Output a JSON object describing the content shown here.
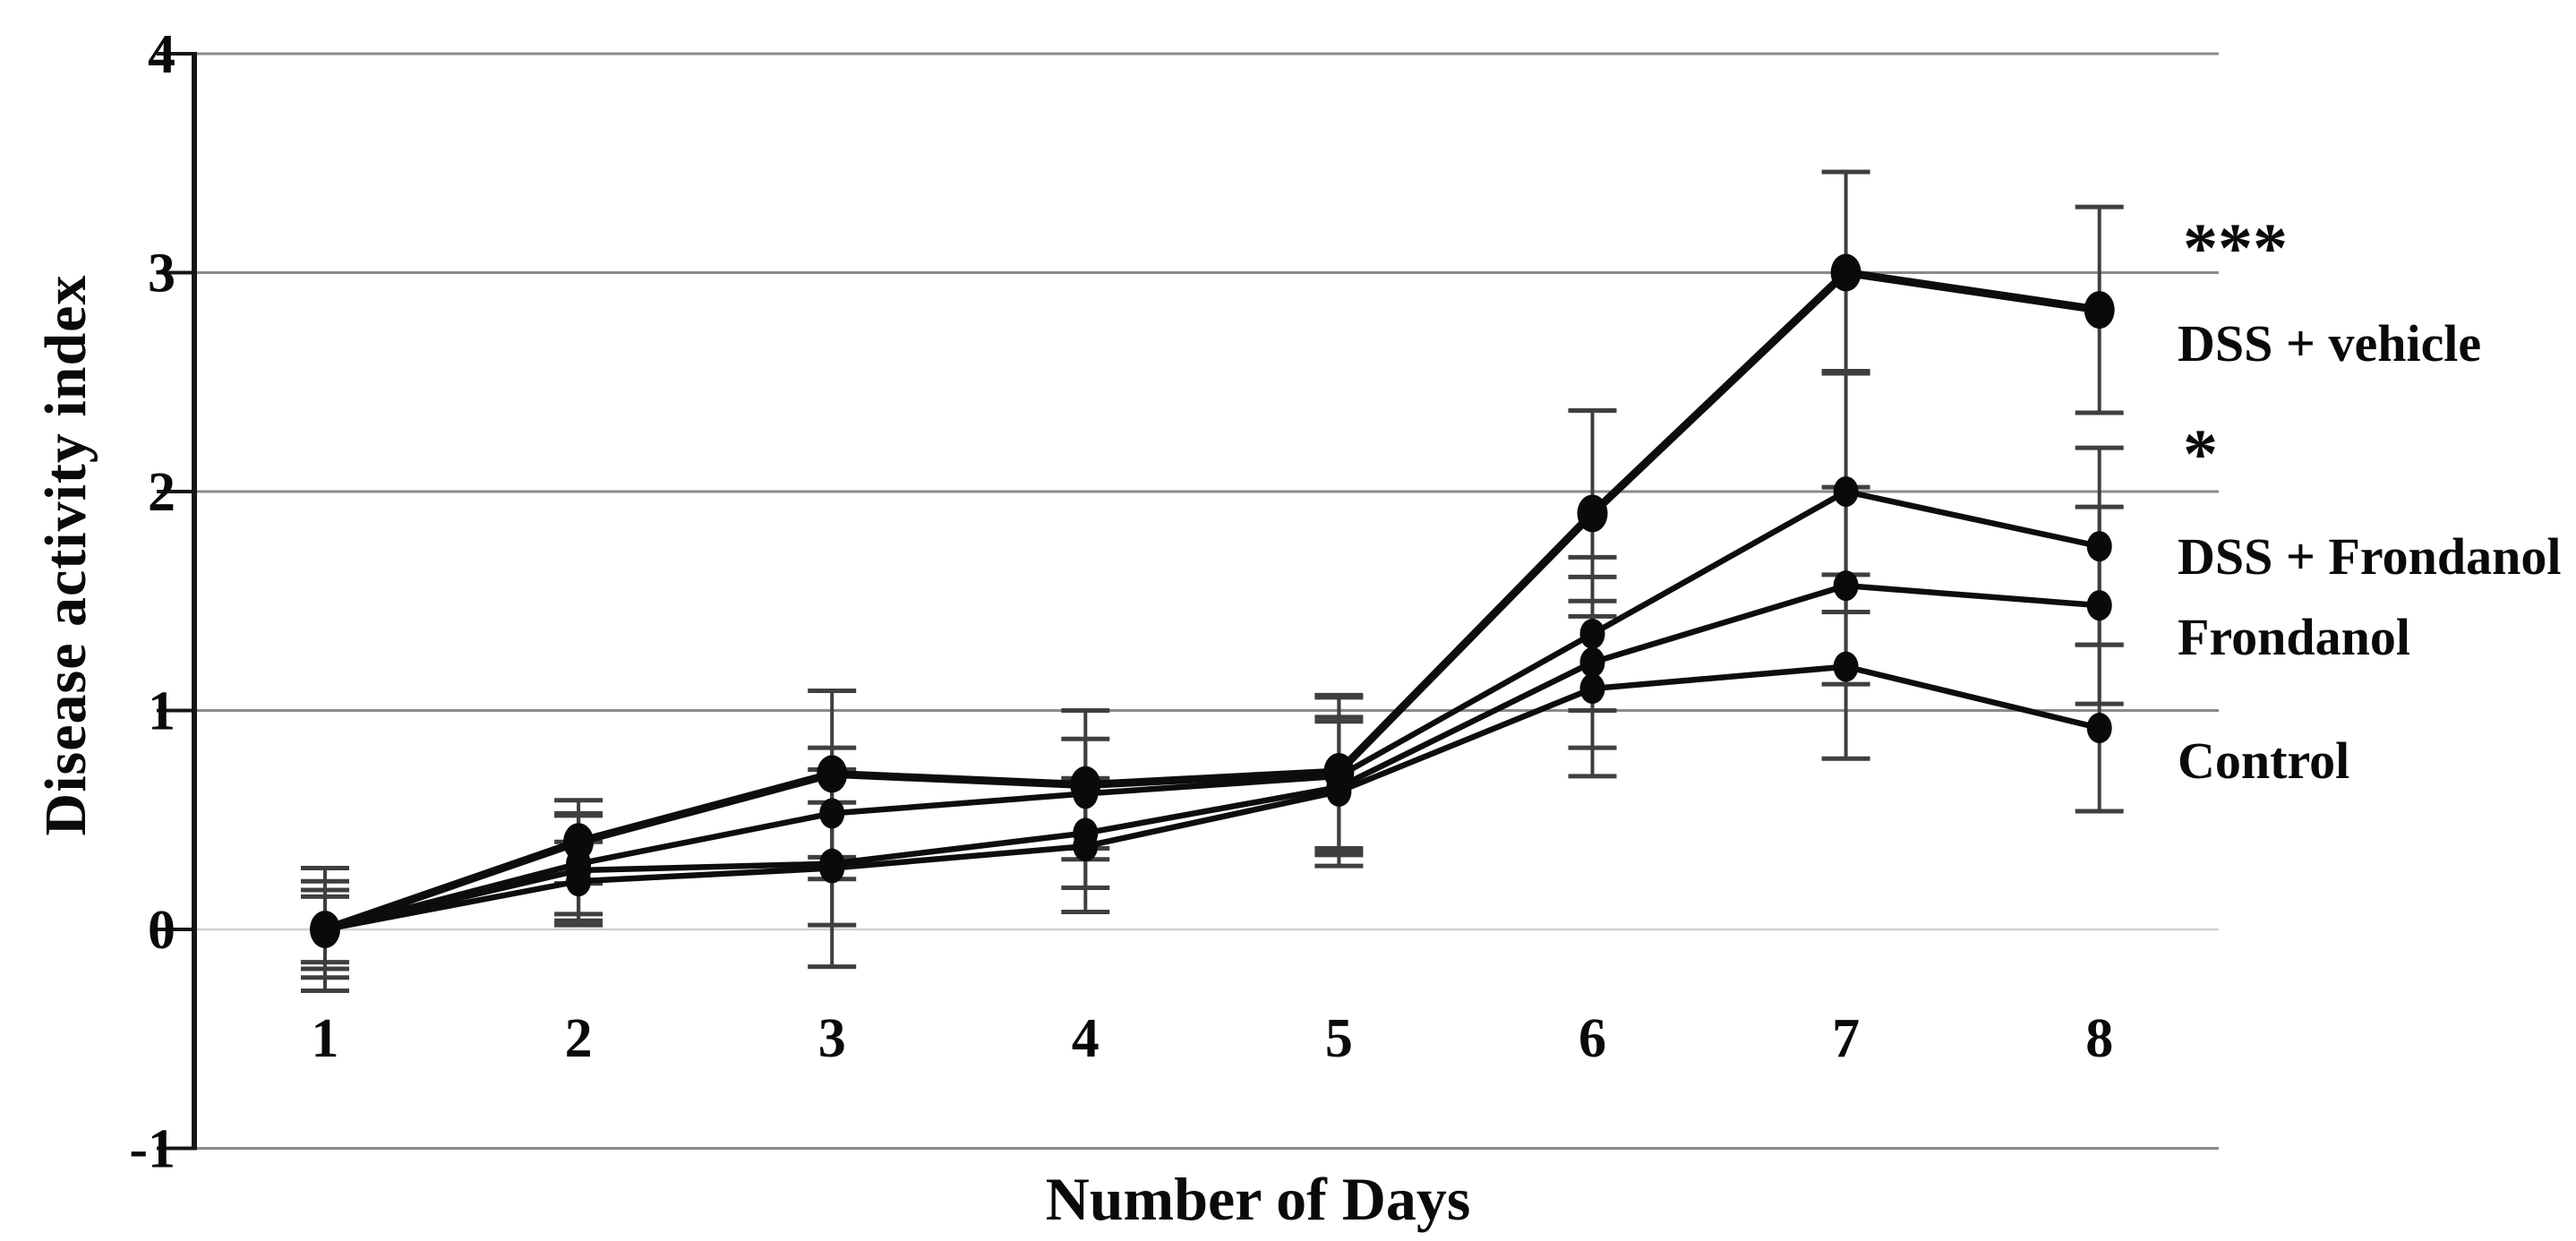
{
  "chart_data": {
    "type": "line",
    "title": "",
    "xlabel": "Number of Days",
    "ylabel": "Disease activity index",
    "x": [
      1,
      2,
      3,
      4,
      5,
      6,
      7,
      8
    ],
    "xlim": [
      1,
      8
    ],
    "ylim": [
      -1,
      4
    ],
    "yticks": [
      4,
      3,
      2,
      1,
      0,
      -1
    ],
    "grid": true,
    "legend_position": "right",
    "colors": {
      "line": "#0d0d0d",
      "marker": "#0a0a0a",
      "gridline": "#8a8a8a",
      "zero_gridline": "#cfcfcf",
      "error_bar": "#3f3f3f",
      "axis": "#161616",
      "text": "#0a0a0a",
      "background": "#ffffff"
    },
    "series": [
      {
        "name": "DSS + vehicle",
        "significance": "***",
        "values": [
          0,
          0.4,
          0.71,
          0.66,
          0.72,
          1.9,
          3.0,
          2.83
        ],
        "errors": [
          0.22,
          0.19,
          0.38,
          0.34,
          0.35,
          0.47,
          0.46,
          0.47
        ]
      },
      {
        "name": "DSS + Frondanol",
        "significance": "*",
        "values": [
          0,
          0.3,
          0.53,
          0.62,
          0.7,
          1.35,
          2.0,
          1.75
        ],
        "errors": [
          0.18,
          0.23,
          0.3,
          0.25,
          0.36,
          0.35,
          0.55,
          0.45
        ]
      },
      {
        "name": "Frondanol",
        "significance": "",
        "values": [
          0,
          0.27,
          0.3,
          0.44,
          0.65,
          1.22,
          1.57,
          1.48
        ],
        "errors": [
          0.15,
          0.25,
          0.28,
          0.25,
          0.3,
          0.39,
          0.45,
          0.45
        ]
      },
      {
        "name": "Control",
        "significance": "",
        "values": [
          0,
          0.22,
          0.28,
          0.38,
          0.63,
          1.1,
          1.2,
          0.92
        ],
        "errors": [
          0.28,
          0.18,
          0.45,
          0.3,
          0.34,
          0.4,
          0.42,
          0.38
        ]
      }
    ]
  }
}
